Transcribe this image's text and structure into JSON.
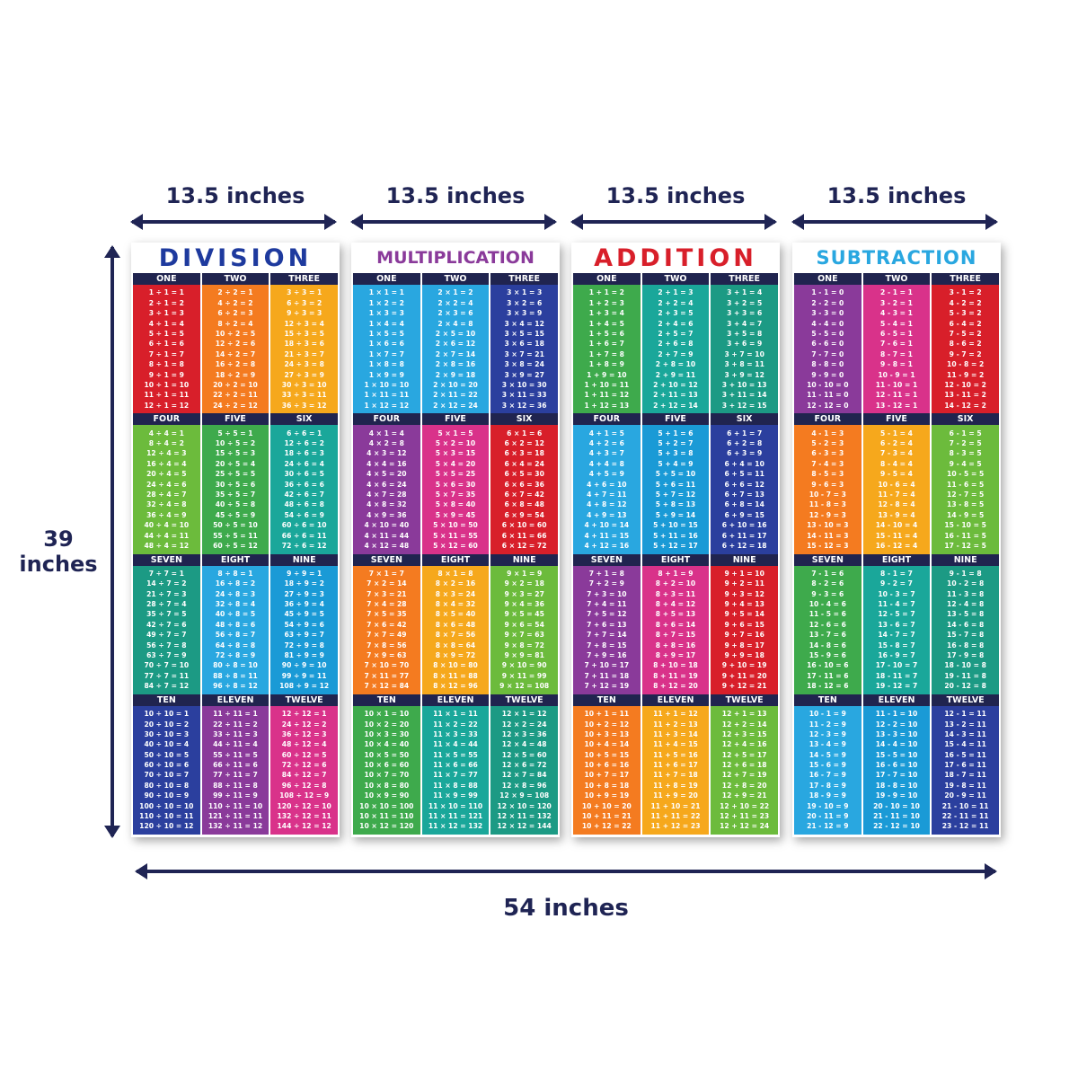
{
  "dimensions": {
    "poster_width_label": "13.5 inches",
    "height_label_line1": "39",
    "height_label_line2": "inches",
    "total_width_label": "54 inches"
  },
  "headers": [
    "ONE",
    "TWO",
    "THREE",
    "FOUR",
    "FIVE",
    "SIX",
    "SEVEN",
    "EIGHT",
    "NINE",
    "TEN",
    "ELEVEN",
    "TWELVE"
  ],
  "posters": [
    {
      "title": "DIVISION",
      "title_color": "#1e3a9e",
      "op": "÷",
      "colors": [
        "#d81f2a",
        "#f47b20",
        "#f6a81c",
        "#6cbb3c",
        "#3eaa4c",
        "#1aa79a",
        "#1c9a84",
        "#29a7e0",
        "#1a9ad6",
        "#2b3f9e",
        "#8a3a9a",
        "#d9328a"
      ],
      "rows": [
        [
          "1 ÷ 1 = 1",
          "2 ÷ 1 = 2",
          "3 ÷ 1 = 3",
          "4 ÷ 1 = 4",
          "5 ÷ 1 = 5",
          "6 ÷ 1 = 6",
          "7 ÷ 1 = 7",
          "8 ÷ 1 = 8",
          "9 ÷ 1 = 9",
          "10 ÷ 1 = 10",
          "11 ÷ 1 = 11",
          "12 ÷ 1 = 12"
        ],
        [
          "2 ÷ 2 = 1",
          "4 ÷ 2 = 2",
          "6 ÷ 2 = 3",
          "8 ÷ 2 = 4",
          "10 ÷ 2 = 5",
          "12 ÷ 2 = 6",
          "14 ÷ 2 = 7",
          "16 ÷ 2 = 8",
          "18 ÷ 2 = 9",
          "20 ÷ 2 = 10",
          "22 ÷ 2 = 11",
          "24 ÷ 2 = 12"
        ],
        [
          "3 ÷ 3 = 1",
          "6 ÷ 3 = 2",
          "9 ÷ 3 = 3",
          "12 ÷ 3 = 4",
          "15 ÷ 3 = 5",
          "18 ÷ 3 = 6",
          "21 ÷ 3 = 7",
          "24 ÷ 3 = 8",
          "27 ÷ 3 = 9",
          "30 ÷ 3 = 10",
          "33 ÷ 3 = 11",
          "36 ÷ 3 = 12"
        ],
        [
          "4 ÷ 4 = 1",
          "8 ÷ 4 = 2",
          "12 ÷ 4 = 3",
          "16 ÷ 4 = 4",
          "20 ÷ 4 = 5",
          "24 ÷ 4 = 6",
          "28 ÷ 4 = 7",
          "32 ÷ 4 = 8",
          "36 ÷ 4 = 9",
          "40 ÷ 4 = 10",
          "44 ÷ 4 = 11",
          "48 ÷ 4 = 12"
        ],
        [
          "5 ÷ 5 = 1",
          "10 ÷ 5 = 2",
          "15 ÷ 5 = 3",
          "20 ÷ 5 = 4",
          "25 ÷ 5 = 5",
          "30 ÷ 5 = 6",
          "35 ÷ 5 = 7",
          "40 ÷ 5 = 8",
          "45 ÷ 5 = 9",
          "50 ÷ 5 = 10",
          "55 ÷ 5 = 11",
          "60 ÷ 5 = 12"
        ],
        [
          "6 ÷ 6 = 1",
          "12 ÷ 6 = 2",
          "18 ÷ 6 = 3",
          "24 ÷ 6 = 4",
          "30 ÷ 6 = 5",
          "36 ÷ 6 = 6",
          "42 ÷ 6 = 7",
          "48 ÷ 6 = 8",
          "54 ÷ 6 = 9",
          "60 ÷ 6 = 10",
          "66 ÷ 6 = 11",
          "72 ÷ 6 = 12"
        ],
        [
          "7 ÷ 7 = 1",
          "14 ÷ 7 = 2",
          "21 ÷ 7 = 3",
          "28 ÷ 7 = 4",
          "35 ÷ 7 = 5",
          "42 ÷ 7 = 6",
          "49 ÷ 7 = 7",
          "56 ÷ 7 = 8",
          "63 ÷ 7 = 9",
          "70 ÷ 7 = 10",
          "77 ÷ 7 = 11",
          "84 ÷ 7 = 12"
        ],
        [
          "8 ÷ 8 = 1",
          "16 ÷ 8 = 2",
          "24 ÷ 8 = 3",
          "32 ÷ 8 = 4",
          "40 ÷ 8 = 5",
          "48 ÷ 8 = 6",
          "56 ÷ 8 = 7",
          "64 ÷ 8 = 8",
          "72 ÷ 8 = 9",
          "80 ÷ 8 = 10",
          "88 ÷ 8 = 11",
          "96 ÷ 8 = 12"
        ],
        [
          "9 ÷ 9 = 1",
          "18 ÷ 9 = 2",
          "27 ÷ 9 = 3",
          "36 ÷ 9 = 4",
          "45 ÷ 9 = 5",
          "54 ÷ 9 = 6",
          "63 ÷ 9 = 7",
          "72 ÷ 9 = 8",
          "81 ÷ 9 = 9",
          "90 ÷ 9 = 10",
          "99 ÷ 9 = 11",
          "108 ÷ 9 = 12"
        ],
        [
          "10 ÷ 10 = 1",
          "20 ÷ 10 = 2",
          "30 ÷ 10 = 3",
          "40 ÷ 10 = 4",
          "50 ÷ 10 = 5",
          "60 ÷ 10 = 6",
          "70 ÷ 10 = 7",
          "80 ÷ 10 = 8",
          "90 ÷ 10 = 9",
          "100 ÷ 10 = 10",
          "110 ÷ 10 = 11",
          "120 ÷ 10 = 12"
        ],
        [
          "11 ÷ 11 = 1",
          "22 ÷ 11 = 2",
          "33 ÷ 11 = 3",
          "44 ÷ 11 = 4",
          "55 ÷ 11 = 5",
          "66 ÷ 11 = 6",
          "77 ÷ 11 = 7",
          "88 ÷ 11 = 8",
          "99 ÷ 11 = 9",
          "110 ÷ 11 = 10",
          "121 ÷ 11 = 11",
          "132 ÷ 11 = 12"
        ],
        [
          "12 ÷ 12 = 1",
          "24 ÷ 12 = 2",
          "36 ÷ 12 = 3",
          "48 ÷ 12 = 4",
          "60 ÷ 12 = 5",
          "72 ÷ 12 = 6",
          "84 ÷ 12 = 7",
          "96 ÷ 12 = 8",
          "108 ÷ 12 = 9",
          "120 ÷ 12 = 10",
          "132 ÷ 12 = 11",
          "144 ÷ 12 = 12"
        ]
      ]
    },
    {
      "title": "MULTIPLICATION",
      "title_color": "#8a3a9a",
      "op": "×",
      "colors": [
        "#29a7e0",
        "#29a7e0",
        "#2b3f9e",
        "#8a3a9a",
        "#d9328a",
        "#d81f2a",
        "#f47b20",
        "#f6a81c",
        "#6cbb3c",
        "#3eaa4c",
        "#1aa79a",
        "#1c9a84"
      ],
      "rows": [
        [
          "1 × 1 = 1",
          "1 × 2 = 2",
          "1 × 3 = 3",
          "1 × 4 = 4",
          "1 × 5 = 5",
          "1 × 6 = 6",
          "1 × 7 = 7",
          "1 × 8 = 8",
          "1 × 9 = 9",
          "1 × 10 = 10",
          "1 × 11 = 11",
          "1 × 12 = 12"
        ],
        [
          "2 × 1 = 2",
          "2 × 2 = 4",
          "2 × 3 = 6",
          "2 × 4 = 8",
          "2 × 5 = 10",
          "2 × 6 = 12",
          "2 × 7 = 14",
          "2 × 8 = 16",
          "2 × 9 = 18",
          "2 × 10 = 20",
          "2 × 11 = 22",
          "2 × 12 = 24"
        ],
        [
          "3 × 1 = 3",
          "3 × 2 = 6",
          "3 × 3 = 9",
          "3 × 4 = 12",
          "3 × 5 = 15",
          "3 × 6 = 18",
          "3 × 7 = 21",
          "3 × 8 = 24",
          "3 × 9 = 27",
          "3 × 10 = 30",
          "3 × 11 = 33",
          "3 × 12 = 36"
        ],
        [
          "4 × 1 = 4",
          "4 × 2 = 8",
          "4 × 3 = 12",
          "4 × 4 = 16",
          "4 × 5 = 20",
          "4 × 6 = 24",
          "4 × 7 = 28",
          "4 × 8 = 32",
          "4 × 9 = 36",
          "4 × 10 = 40",
          "4 × 11 = 44",
          "4 × 12 = 48"
        ],
        [
          "5 × 1 = 5",
          "5 × 2 = 10",
          "5 × 3 = 15",
          "5 × 4 = 20",
          "5 × 5 = 25",
          "5 × 6 = 30",
          "5 × 7 = 35",
          "5 × 8 = 40",
          "5 × 9 = 45",
          "5 × 10 = 50",
          "5 × 11 = 55",
          "5 × 12 = 60"
        ],
        [
          "6 × 1 = 6",
          "6 × 2 = 12",
          "6 × 3 = 18",
          "6 × 4 = 24",
          "6 × 5 = 30",
          "6 × 6 = 36",
          "6 × 7 = 42",
          "6 × 8 = 48",
          "6 × 9 = 54",
          "6 × 10 = 60",
          "6 × 11 = 66",
          "6 × 12 = 72"
        ],
        [
          "7 × 1 = 7",
          "7 × 2 = 14",
          "7 × 3 = 21",
          "7 × 4 = 28",
          "7 × 5 = 35",
          "7 × 6 = 42",
          "7 × 7 = 49",
          "7 × 8 = 56",
          "7 × 9 = 63",
          "7 × 10 = 70",
          "7 × 11 = 77",
          "7 × 12 = 84"
        ],
        [
          "8 × 1 = 8",
          "8 × 2 = 16",
          "8 × 3 = 24",
          "8 × 4 = 32",
          "8 × 5 = 40",
          "8 × 6 = 48",
          "8 × 7 = 56",
          "8 × 8 = 64",
          "8 × 9 = 72",
          "8 × 10 = 80",
          "8 × 11 = 88",
          "8 × 12 = 96"
        ],
        [
          "9 × 1 = 9",
          "9 × 2 = 18",
          "9 × 3 = 27",
          "9 × 4 = 36",
          "9 × 5 = 45",
          "9 × 6 = 54",
          "9 × 7 = 63",
          "9 × 8 = 72",
          "9 × 9 = 81",
          "9 × 10 = 90",
          "9 × 11 = 99",
          "9 × 12 = 108"
        ],
        [
          "10 × 1 = 10",
          "10 × 2 = 20",
          "10 × 3 = 30",
          "10 × 4 = 40",
          "10 × 5 = 50",
          "10 × 6 = 60",
          "10 × 7 = 70",
          "10 × 8 = 80",
          "10 × 9 = 90",
          "10 × 10 = 100",
          "10 × 11 = 110",
          "10 × 12 = 120"
        ],
        [
          "11 × 1 = 11",
          "11 × 2 = 22",
          "11 × 3 = 33",
          "11 × 4 = 44",
          "11 × 5 = 55",
          "11 × 6 = 66",
          "11 × 7 = 77",
          "11 × 8 = 88",
          "11 × 9 = 99",
          "11 × 10 = 110",
          "11 × 11 = 121",
          "11 × 12 = 132"
        ],
        [
          "12 × 1 = 12",
          "12 × 2 = 24",
          "12 × 3 = 36",
          "12 × 4 = 48",
          "12 × 5 = 60",
          "12 × 6 = 72",
          "12 × 7 = 84",
          "12 × 8 = 96",
          "12 × 9 = 108",
          "12 × 10 = 120",
          "12 × 11 = 132",
          "12 × 12 = 144"
        ]
      ]
    },
    {
      "title": "ADDITION",
      "title_color": "#d81f2a",
      "op": "+",
      "colors": [
        "#3eaa4c",
        "#1aa79a",
        "#1c9a84",
        "#29a7e0",
        "#1a9ad6",
        "#2b3f9e",
        "#8a3a9a",
        "#d9328a",
        "#d81f2a",
        "#f47b20",
        "#f6a81c",
        "#6cbb3c"
      ],
      "rows": [
        [
          "1 + 1 = 2",
          "1 + 2 = 3",
          "1 + 3 = 4",
          "1 + 4 = 5",
          "1 + 5 = 6",
          "1 + 6 = 7",
          "1 + 7 = 8",
          "1 + 8 = 9",
          "1 + 9 = 10",
          "1 + 10 = 11",
          "1 + 11 = 12",
          "1 + 12 = 13"
        ],
        [
          "2 + 1 = 3",
          "2 + 2 = 4",
          "2 + 3 = 5",
          "2 + 4 = 6",
          "2 + 5 = 7",
          "2 + 6 = 8",
          "2 + 7 = 9",
          "2 + 8 = 10",
          "2 + 9 = 11",
          "2 + 10 = 12",
          "2 + 11 = 13",
          "2 + 12 = 14"
        ],
        [
          "3 + 1 = 4",
          "3 + 2 = 5",
          "3 + 3 = 6",
          "3 + 4 = 7",
          "3 + 5 = 8",
          "3 + 6 = 9",
          "3 + 7 = 10",
          "3 + 8 = 11",
          "3 + 9 = 12",
          "3 + 10 = 13",
          "3 + 11 = 14",
          "3 + 12 = 15"
        ],
        [
          "4 + 1 = 5",
          "4 + 2 = 6",
          "4 + 3 = 7",
          "4 + 4 = 8",
          "4 + 5 = 9",
          "4 + 6 = 10",
          "4 + 7 = 11",
          "4 + 8 = 12",
          "4 + 9 = 13",
          "4 + 10 = 14",
          "4 + 11 = 15",
          "4 + 12 = 16"
        ],
        [
          "5 + 1 = 6",
          "5 + 2 = 7",
          "5 + 3 = 8",
          "5 + 4 = 9",
          "5 + 5 = 10",
          "5 + 6 = 11",
          "5 + 7 = 12",
          "5 + 8 = 13",
          "5 + 9 = 14",
          "5 + 10 = 15",
          "5 + 11 = 16",
          "5 + 12 = 17"
        ],
        [
          "6 + 1 = 7",
          "6 + 2 = 8",
          "6 + 3 = 9",
          "6 + 4 = 10",
          "6 + 5 = 11",
          "6 + 6 = 12",
          "6 + 7 = 13",
          "6 + 8 = 14",
          "6 + 9 = 15",
          "6 + 10 = 16",
          "6 + 11 = 17",
          "6 + 12 = 18"
        ],
        [
          "7 + 1 = 8",
          "7 + 2 = 9",
          "7 + 3 = 10",
          "7 + 4 = 11",
          "7 + 5 = 12",
          "7 + 6 = 13",
          "7 + 7 = 14",
          "7 + 8 = 15",
          "7 + 9 = 16",
          "7 + 10 = 17",
          "7 + 11 = 18",
          "7 + 12 = 19"
        ],
        [
          "8 + 1 = 9",
          "8 + 2 = 10",
          "8 + 3 = 11",
          "8 + 4 = 12",
          "8 + 5 = 13",
          "8 + 6 = 14",
          "8 + 7 = 15",
          "8 + 8 = 16",
          "8 + 9 = 17",
          "8 + 10 = 18",
          "8 + 11 = 19",
          "8 + 12 = 20"
        ],
        [
          "9 + 1 = 10",
          "9 + 2 = 11",
          "9 + 3 = 12",
          "9 + 4 = 13",
          "9 + 5 = 14",
          "9 + 6 = 15",
          "9 + 7 = 16",
          "9 + 8 = 17",
          "9 + 9 = 18",
          "9 + 10 = 19",
          "9 + 11 = 20",
          "9 + 12 = 21"
        ],
        [
          "10 + 1 = 11",
          "10 + 2 = 12",
          "10 + 3 = 13",
          "10 + 4 = 14",
          "10 + 5 = 15",
          "10 + 6 = 16",
          "10 + 7 = 17",
          "10 + 8 = 18",
          "10 + 9 = 19",
          "10 + 10 = 20",
          "10 + 11 = 21",
          "10 + 12 = 22"
        ],
        [
          "11 + 1 = 12",
          "11 + 2 = 13",
          "11 + 3 = 14",
          "11 + 4 = 15",
          "11 + 5 = 16",
          "11 + 6 = 17",
          "11 + 7 = 18",
          "11 + 8 = 19",
          "11 + 9 = 20",
          "11 + 10 = 21",
          "11 + 11 = 22",
          "11 + 12 = 23"
        ],
        [
          "12 + 1 = 13",
          "12 + 2 = 14",
          "12 + 3 = 15",
          "12 + 4 = 16",
          "12 + 5 = 17",
          "12 + 6 = 18",
          "12 + 7 = 19",
          "12 + 8 = 20",
          "12 + 9 = 21",
          "12 + 10 = 22",
          "12 + 11 = 23",
          "12 + 12 = 24"
        ]
      ]
    },
    {
      "title": "SUBTRACTION",
      "title_color": "#29a7e0",
      "op": "-",
      "colors": [
        "#8a3a9a",
        "#d9328a",
        "#d81f2a",
        "#f47b20",
        "#f6a81c",
        "#6cbb3c",
        "#3eaa4c",
        "#1aa79a",
        "#1c9a84",
        "#29a7e0",
        "#1a9ad6",
        "#2b3f9e"
      ],
      "rows": [
        [
          "1 - 1 = 0",
          "2 - 2 = 0",
          "3 - 3 = 0",
          "4 - 4 = 0",
          "5 - 5 = 0",
          "6 - 6 = 0",
          "7 - 7 = 0",
          "8 - 8 = 0",
          "9 - 9 = 0",
          "10 - 10 = 0",
          "11 - 11 = 0",
          "12 - 12 = 0"
        ],
        [
          "2 - 1 = 1",
          "3 - 2 = 1",
          "4 - 3 = 1",
          "5 - 4 = 1",
          "6 - 5 = 1",
          "7 - 6 = 1",
          "8 - 7 = 1",
          "9 - 8 = 1",
          "10 - 9 = 1",
          "11 - 10 = 1",
          "12 - 11 = 1",
          "13 - 12 = 1"
        ],
        [
          "3 - 1 = 2",
          "4 - 2 = 2",
          "5 - 3 = 2",
          "6 - 4 = 2",
          "7 - 5 = 2",
          "8 - 6 = 2",
          "9 - 7 = 2",
          "10 - 8 = 2",
          "11 - 9 = 2",
          "12 - 10 = 2",
          "13 - 11 = 2",
          "14 - 12 = 2"
        ],
        [
          "4 - 1 = 3",
          "5 - 2 = 3",
          "6 - 3 = 3",
          "7 - 4 = 3",
          "8 - 5 = 3",
          "9 - 6 = 3",
          "10 - 7 = 3",
          "11 - 8 = 3",
          "12 - 9 = 3",
          "13 - 10 = 3",
          "14 - 11 = 3",
          "15 - 12 = 3"
        ],
        [
          "5 - 1 = 4",
          "6 - 2 = 4",
          "7 - 3 = 4",
          "8 - 4 = 4",
          "9 - 5 = 4",
          "10 - 6 = 4",
          "11 - 7 = 4",
          "12 - 8 = 4",
          "13 - 9 = 4",
          "14 - 10 = 4",
          "15 - 11 = 4",
          "16 - 12 = 4"
        ],
        [
          "6 - 1 = 5",
          "7 - 2 = 5",
          "8 - 3 = 5",
          "9 - 4 = 5",
          "10 - 5 = 5",
          "11 - 6 = 5",
          "12 - 7 = 5",
          "13 - 8 = 5",
          "14 - 9 = 5",
          "15 - 10 = 5",
          "16 - 11 = 5",
          "17 - 12 = 5"
        ],
        [
          "7 - 1 = 6",
          "8 - 2 = 6",
          "9 - 3 = 6",
          "10 - 4 = 6",
          "11 - 5 = 6",
          "12 - 6 = 6",
          "13 - 7 = 6",
          "14 - 8 = 6",
          "15 - 9 = 6",
          "16 - 10 = 6",
          "17 - 11 = 6",
          "18 - 12 = 6"
        ],
        [
          "8 - 1 = 7",
          "9 - 2 = 7",
          "10 - 3 = 7",
          "11 - 4 = 7",
          "12 - 5 = 7",
          "13 - 6 = 7",
          "14 - 7 = 7",
          "15 - 8 = 7",
          "16 - 9 = 7",
          "17 - 10 = 7",
          "18 - 11 = 7",
          "19 - 12 = 7"
        ],
        [
          "9 - 1 = 8",
          "10 - 2 = 8",
          "11 - 3 = 8",
          "12 - 4 = 8",
          "13 - 5 = 8",
          "14 - 6 = 8",
          "15 - 7 = 8",
          "16 - 8 = 8",
          "17 - 9 = 8",
          "18 - 10 = 8",
          "19 - 11 = 8",
          "20 - 12 = 8"
        ],
        [
          "10 - 1 = 9",
          "11 - 2 = 9",
          "12 - 3 = 9",
          "13 - 4 = 9",
          "14 - 5 = 9",
          "15 - 6 = 9",
          "16 - 7 = 9",
          "17 - 8 = 9",
          "18 - 9 = 9",
          "19 - 10 = 9",
          "20 - 11 = 9",
          "21 - 12 = 9"
        ],
        [
          "11 - 1 = 10",
          "12 - 2 = 10",
          "13 - 3 = 10",
          "14 - 4 = 10",
          "15 - 5 = 10",
          "16 - 6 = 10",
          "17 - 7 = 10",
          "18 - 8 = 10",
          "19 - 9 = 10",
          "20 - 10 = 10",
          "21 - 11 = 10",
          "22 - 12 = 10"
        ],
        [
          "12 - 1 = 11",
          "13 - 2 = 11",
          "14 - 3 = 11",
          "15 - 4 = 11",
          "16 - 5 = 11",
          "17 - 6 = 11",
          "18 - 7 = 11",
          "19 - 8 = 11",
          "20 - 9 = 11",
          "21 - 10 = 11",
          "22 - 11 = 11",
          "23 - 12 = 11"
        ]
      ]
    }
  ]
}
